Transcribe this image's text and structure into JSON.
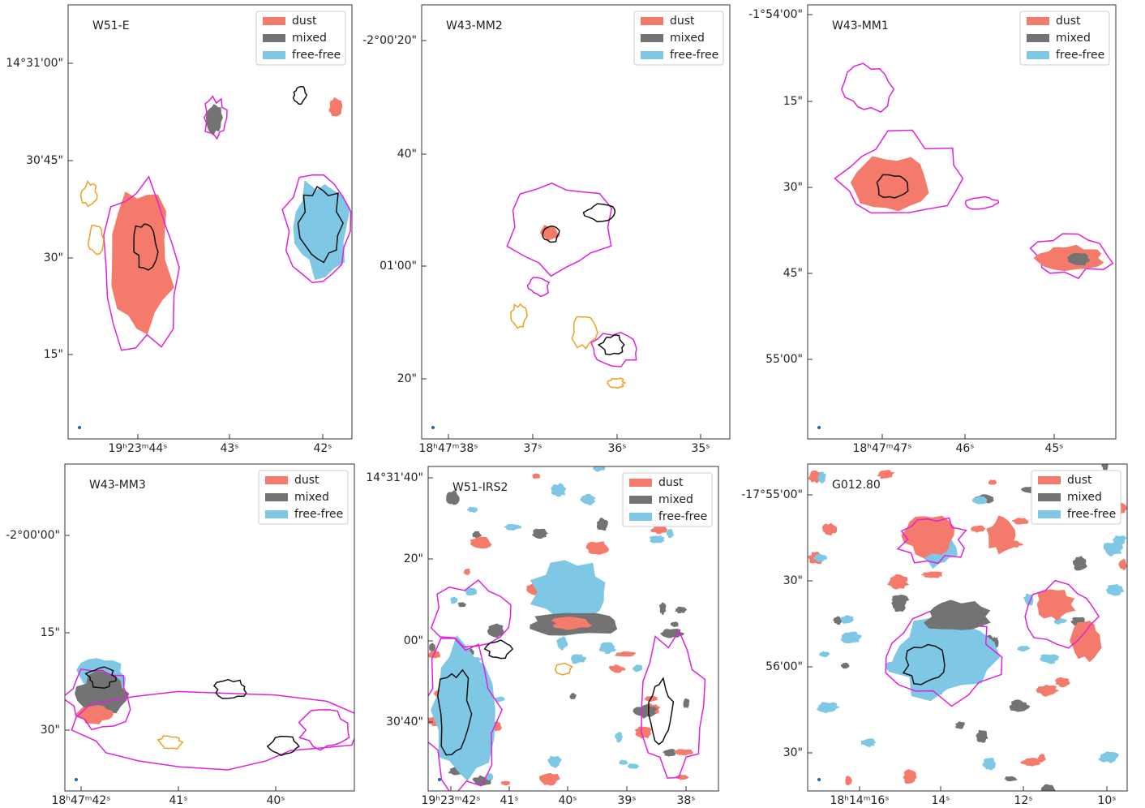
{
  "legend": [
    {
      "name": "dust",
      "color": "#f47a6b"
    },
    {
      "name": "mixed",
      "color": "#737373"
    },
    {
      "name": "free-free",
      "color": "#7ec8e6"
    }
  ],
  "panels": [
    {
      "title": "W51-E",
      "yticks": [
        "14°31'00\"",
        "30'45\"",
        "30\"",
        "15\""
      ],
      "xticks": [
        "19ʰ23ᵐ44ˢ",
        "43ˢ",
        "42ˢ"
      ]
    },
    {
      "title": "W43-MM2",
      "yticks": [
        "-2°00'20\"",
        "40\"",
        "01'00\"",
        "20\""
      ],
      "xticks": [
        "18ʰ47ᵐ38ˢ",
        "37ˢ",
        "36ˢ",
        "35ˢ"
      ]
    },
    {
      "title": "W43-MM1",
      "yticks": [
        "-1°54'00\"",
        "15\"",
        "30\"",
        "45\"",
        "55'00\""
      ],
      "xticks": [
        "18ʰ47ᵐ47ˢ",
        "46ˢ",
        "45ˢ"
      ]
    },
    {
      "title": "W43-MM3",
      "yticks": [
        "-2°00'00\"",
        "15\"",
        "30\""
      ],
      "xticks": [
        "18ʰ47ᵐ42ˢ",
        "41ˢ",
        "40ˢ"
      ]
    },
    {
      "title": "W51-IRS2",
      "yticks": [
        "14°31'40\"",
        "20\"",
        "00\"",
        "30'40\""
      ],
      "xticks": [
        "19ʰ23ᵐ42ˢ",
        "41ˢ",
        "40ˢ",
        "39ˢ",
        "38ˢ"
      ]
    },
    {
      "title": "G012.80",
      "yticks": [
        "-17°55'00\"",
        "30\"",
        "56'00\"",
        "30\""
      ],
      "xticks": [
        "18ʰ14ᵐ16ˢ",
        "14ˢ",
        "12ˢ",
        "10ˢ"
      ]
    }
  ]
}
